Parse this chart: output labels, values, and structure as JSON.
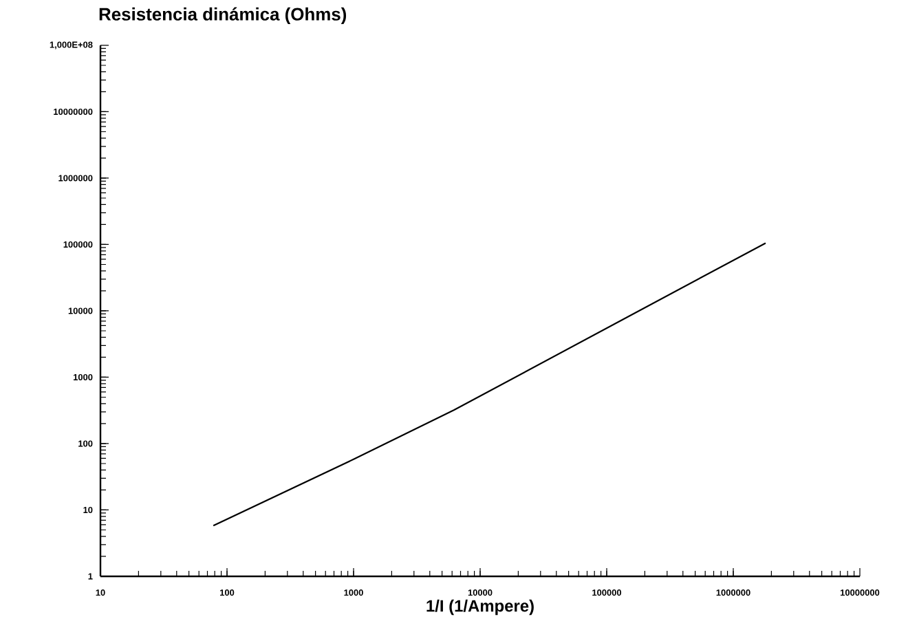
{
  "chart_data": {
    "type": "line",
    "title": "Resistencia dinámica  (Ohms)",
    "xlabel": "1/I (1/Ampere)",
    "log": "xy",
    "x": [
      78,
      1000,
      6200,
      150000,
      1800000
    ],
    "series": [
      {
        "color": "#000000",
        "values": [
          5.8,
          58,
          320,
          8300,
          105000
        ]
      }
    ],
    "xlim": [
      10,
      10000000
    ],
    "ylim": [
      1,
      100000000
    ],
    "xticks": [
      10,
      100,
      1000,
      10000,
      100000,
      1000000,
      10000000
    ],
    "yticks": [
      1,
      10,
      100,
      1000,
      10000,
      100000,
      1000000,
      10000000,
      {
        "value": 100000000,
        "label": "1,000E+08"
      }
    ],
    "grid": false,
    "marker": "none",
    "line_style": "solid"
  }
}
